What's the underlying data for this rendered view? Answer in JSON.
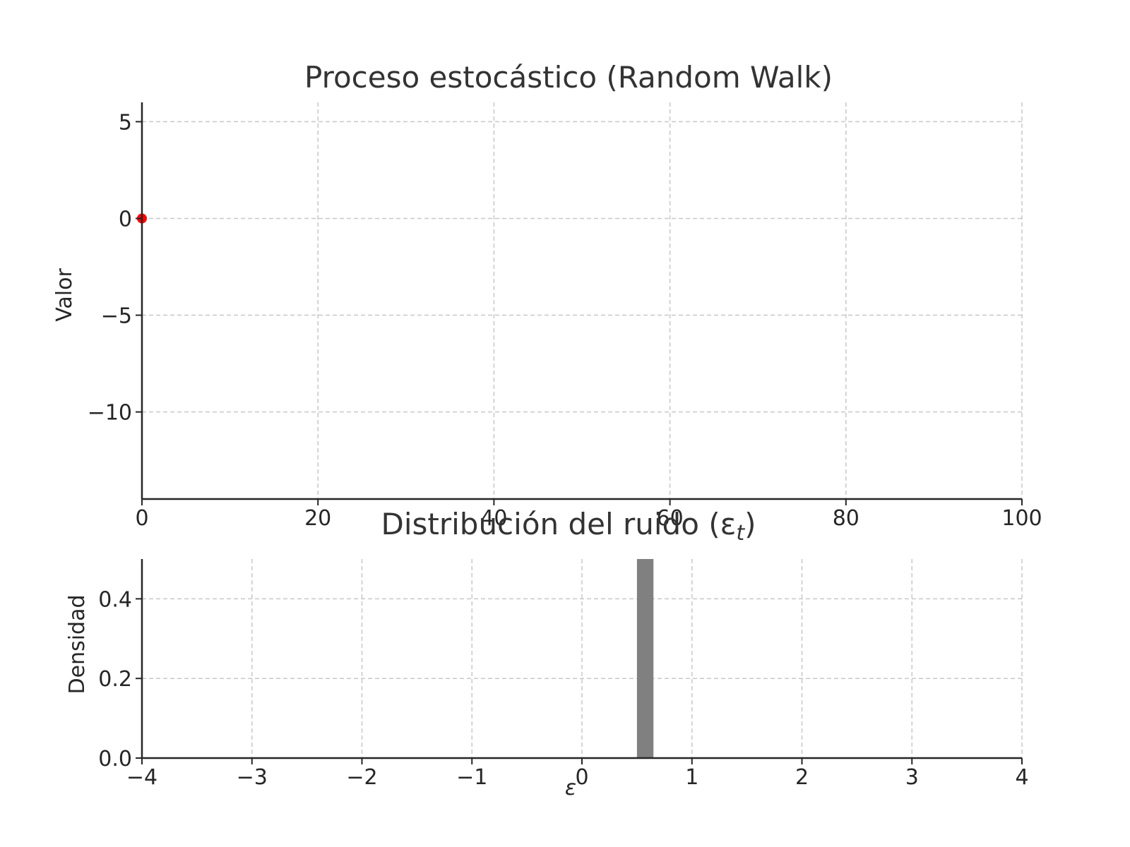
{
  "chart_data": [
    {
      "type": "line",
      "title": "Proceso estocástico (Random Walk)",
      "xlabel": "",
      "ylabel": "Valor",
      "xlim": [
        0,
        100
      ],
      "ylim": [
        -14.5,
        6
      ],
      "xticks": [
        0,
        20,
        40,
        60,
        80,
        100
      ],
      "xtick_labels": [
        "0",
        "20",
        "40",
        "60",
        "80",
        "100"
      ],
      "yticks": [
        5,
        0,
        -5,
        -10
      ],
      "ytick_labels": [
        "5",
        "0",
        "−5",
        "−10"
      ],
      "grid": true,
      "series": [
        {
          "color": "#ff0000",
          "points": [
            {
              "x": 0,
              "y": 0
            }
          ]
        }
      ]
    },
    {
      "type": "bar",
      "title": "Distribución del ruido (ε",
      "title_subscript": "t",
      "title_suffix": ")",
      "xlabel": "ε",
      "ylabel": "Densidad",
      "xlim": [
        -4,
        4
      ],
      "ylim": [
        0,
        0.5
      ],
      "xticks": [
        -4,
        -3,
        -2,
        -1,
        0,
        1,
        2,
        3,
        4
      ],
      "xtick_labels": [
        "−4",
        "−3",
        "−2",
        "−1",
        "0",
        "1",
        "2",
        "3",
        "4"
      ],
      "yticks": [
        0.0,
        0.2,
        0.4
      ],
      "ytick_labels": [
        "0.0",
        "0.2",
        "0.4"
      ],
      "grid": true,
      "bars": [
        {
          "x0": 0.5,
          "x1": 0.65,
          "value": 0.5,
          "color": "#808080"
        }
      ]
    }
  ]
}
